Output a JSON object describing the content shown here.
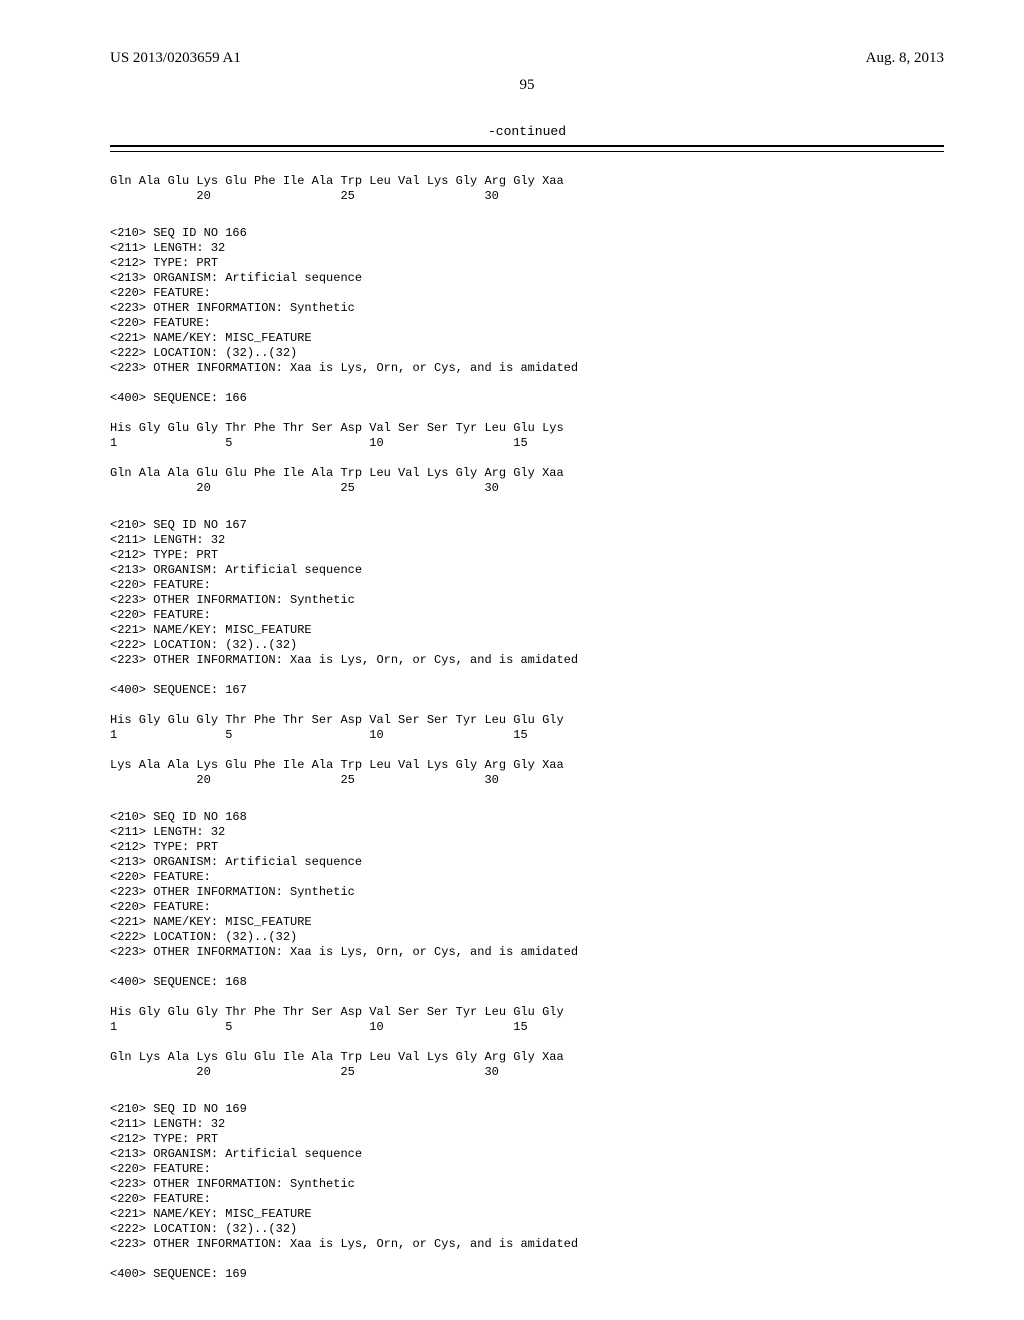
{
  "header": {
    "left": "US 2013/0203659 A1",
    "right": "Aug. 8, 2013"
  },
  "page_number": "95",
  "continued_label": "-continued",
  "blocks": [
    {
      "lines": [
        "Gln Ala Glu Lys Glu Phe Ile Ala Trp Leu Val Lys Gly Arg Gly Xaa",
        "            20                  25                  30"
      ]
    },
    {
      "lines": [
        "<210> SEQ ID NO 166",
        "<211> LENGTH: 32",
        "<212> TYPE: PRT",
        "<213> ORGANISM: Artificial sequence",
        "<220> FEATURE:",
        "<223> OTHER INFORMATION: Synthetic",
        "<220> FEATURE:",
        "<221> NAME/KEY: MISC_FEATURE",
        "<222> LOCATION: (32)..(32)",
        "<223> OTHER INFORMATION: Xaa is Lys, Orn, or Cys, and is amidated",
        "",
        "<400> SEQUENCE: 166",
        "",
        "His Gly Glu Gly Thr Phe Thr Ser Asp Val Ser Ser Tyr Leu Glu Lys",
        "1               5                   10                  15",
        "",
        "Gln Ala Ala Glu Glu Phe Ile Ala Trp Leu Val Lys Gly Arg Gly Xaa",
        "            20                  25                  30"
      ]
    },
    {
      "lines": [
        "<210> SEQ ID NO 167",
        "<211> LENGTH: 32",
        "<212> TYPE: PRT",
        "<213> ORGANISM: Artificial sequence",
        "<220> FEATURE:",
        "<223> OTHER INFORMATION: Synthetic",
        "<220> FEATURE:",
        "<221> NAME/KEY: MISC_FEATURE",
        "<222> LOCATION: (32)..(32)",
        "<223> OTHER INFORMATION: Xaa is Lys, Orn, or Cys, and is amidated",
        "",
        "<400> SEQUENCE: 167",
        "",
        "His Gly Glu Gly Thr Phe Thr Ser Asp Val Ser Ser Tyr Leu Glu Gly",
        "1               5                   10                  15",
        "",
        "Lys Ala Ala Lys Glu Phe Ile Ala Trp Leu Val Lys Gly Arg Gly Xaa",
        "            20                  25                  30"
      ]
    },
    {
      "lines": [
        "<210> SEQ ID NO 168",
        "<211> LENGTH: 32",
        "<212> TYPE: PRT",
        "<213> ORGANISM: Artificial sequence",
        "<220> FEATURE:",
        "<223> OTHER INFORMATION: Synthetic",
        "<220> FEATURE:",
        "<221> NAME/KEY: MISC_FEATURE",
        "<222> LOCATION: (32)..(32)",
        "<223> OTHER INFORMATION: Xaa is Lys, Orn, or Cys, and is amidated",
        "",
        "<400> SEQUENCE: 168",
        "",
        "His Gly Glu Gly Thr Phe Thr Ser Asp Val Ser Ser Tyr Leu Glu Gly",
        "1               5                   10                  15",
        "",
        "Gln Lys Ala Lys Glu Glu Ile Ala Trp Leu Val Lys Gly Arg Gly Xaa",
        "            20                  25                  30"
      ]
    },
    {
      "lines": [
        "<210> SEQ ID NO 169",
        "<211> LENGTH: 32",
        "<212> TYPE: PRT",
        "<213> ORGANISM: Artificial sequence",
        "<220> FEATURE:",
        "<223> OTHER INFORMATION: Synthetic",
        "<220> FEATURE:",
        "<221> NAME/KEY: MISC_FEATURE",
        "<222> LOCATION: (32)..(32)",
        "<223> OTHER INFORMATION: Xaa is Lys, Orn, or Cys, and is amidated",
        "",
        "<400> SEQUENCE: 169"
      ]
    }
  ]
}
